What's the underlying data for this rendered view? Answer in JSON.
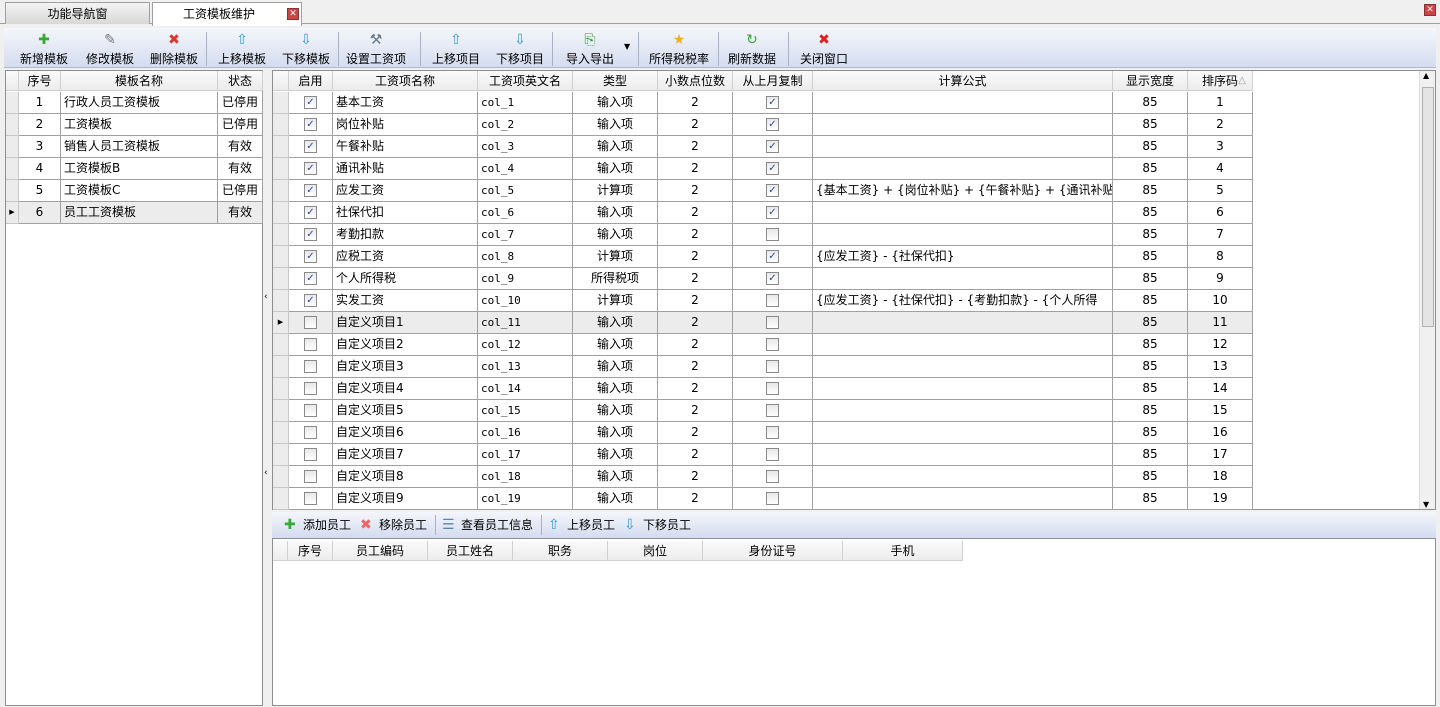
{
  "tabs": [
    {
      "label": "功能导航窗"
    },
    {
      "label": "工资模板维护"
    }
  ],
  "toolbar": [
    "新增模板",
    "修改模板",
    "删除模板",
    "上移模板",
    "下移模板",
    "设置工资项",
    "上移项目",
    "下移项目",
    "导入导出",
    "所得税税率",
    "刷新数据",
    "关闭窗口"
  ],
  "left_grid": {
    "headers": [
      "序号",
      "模板名称",
      "状态"
    ],
    "rows": [
      [
        "1",
        "行政人员工资模板",
        "已停用"
      ],
      [
        "2",
        "工资模板",
        "已停用"
      ],
      [
        "3",
        "销售人员工资模板",
        "有效"
      ],
      [
        "4",
        "工资模板B",
        "有效"
      ],
      [
        "5",
        "工资模板C",
        "已停用"
      ],
      [
        "6",
        "员工工资模板",
        "有效"
      ]
    ],
    "selected_index": 5
  },
  "items_grid": {
    "headers": [
      "启用",
      "工资项名称",
      "工资项英文名",
      "类型",
      "小数点位数",
      "从上月复制",
      "计算公式",
      "显示宽度",
      "排序码"
    ],
    "sort_indicator": "△",
    "rows": [
      [
        true,
        "基本工资",
        "col_1",
        "输入项",
        "2",
        true,
        "",
        "85",
        "1"
      ],
      [
        true,
        "岗位补贴",
        "col_2",
        "输入项",
        "2",
        true,
        "",
        "85",
        "2"
      ],
      [
        true,
        "午餐补贴",
        "col_3",
        "输入项",
        "2",
        true,
        "",
        "85",
        "3"
      ],
      [
        true,
        "通讯补贴",
        "col_4",
        "输入项",
        "2",
        true,
        "",
        "85",
        "4"
      ],
      [
        true,
        "应发工资",
        "col_5",
        "计算项",
        "2",
        true,
        "{基本工资} + {岗位补贴} + {午餐补贴} + {通讯补贴}",
        "85",
        "5"
      ],
      [
        true,
        "社保代扣",
        "col_6",
        "输入项",
        "2",
        true,
        "",
        "85",
        "6"
      ],
      [
        true,
        "考勤扣款",
        "col_7",
        "输入项",
        "2",
        false,
        "",
        "85",
        "7"
      ],
      [
        true,
        "应税工资",
        "col_8",
        "计算项",
        "2",
        true,
        "{应发工资} - {社保代扣}",
        "85",
        "8"
      ],
      [
        true,
        "个人所得税",
        "col_9",
        "所得税项",
        "2",
        true,
        "",
        "85",
        "9"
      ],
      [
        true,
        "实发工资",
        "col_10",
        "计算项",
        "2",
        false,
        "{应发工资} - {社保代扣} - {考勤扣款} - {个人所得",
        "85",
        "10"
      ],
      [
        false,
        "自定义项目1",
        "col_11",
        "输入项",
        "2",
        false,
        "",
        "85",
        "11"
      ],
      [
        false,
        "自定义项目2",
        "col_12",
        "输入项",
        "2",
        false,
        "",
        "85",
        "12"
      ],
      [
        false,
        "自定义项目3",
        "col_13",
        "输入项",
        "2",
        false,
        "",
        "85",
        "13"
      ],
      [
        false,
        "自定义项目4",
        "col_14",
        "输入项",
        "2",
        false,
        "",
        "85",
        "14"
      ],
      [
        false,
        "自定义项目5",
        "col_15",
        "输入项",
        "2",
        false,
        "",
        "85",
        "15"
      ],
      [
        false,
        "自定义项目6",
        "col_16",
        "输入项",
        "2",
        false,
        "",
        "85",
        "16"
      ],
      [
        false,
        "自定义项目7",
        "col_17",
        "输入项",
        "2",
        false,
        "",
        "85",
        "17"
      ],
      [
        false,
        "自定义项目8",
        "col_18",
        "输入项",
        "2",
        false,
        "",
        "85",
        "18"
      ],
      [
        false,
        "自定义项目9",
        "col_19",
        "输入项",
        "2",
        false,
        "",
        "85",
        "19"
      ]
    ],
    "selected_index": 10
  },
  "employee_toolbar": [
    "添加员工",
    "移除员工",
    "查看员工信息",
    "上移员工",
    "下移员工"
  ],
  "employee_grid": {
    "headers": [
      "序号",
      "员工编码",
      "员工姓名",
      "职务",
      "岗位",
      "身份证号",
      "手机"
    ]
  }
}
